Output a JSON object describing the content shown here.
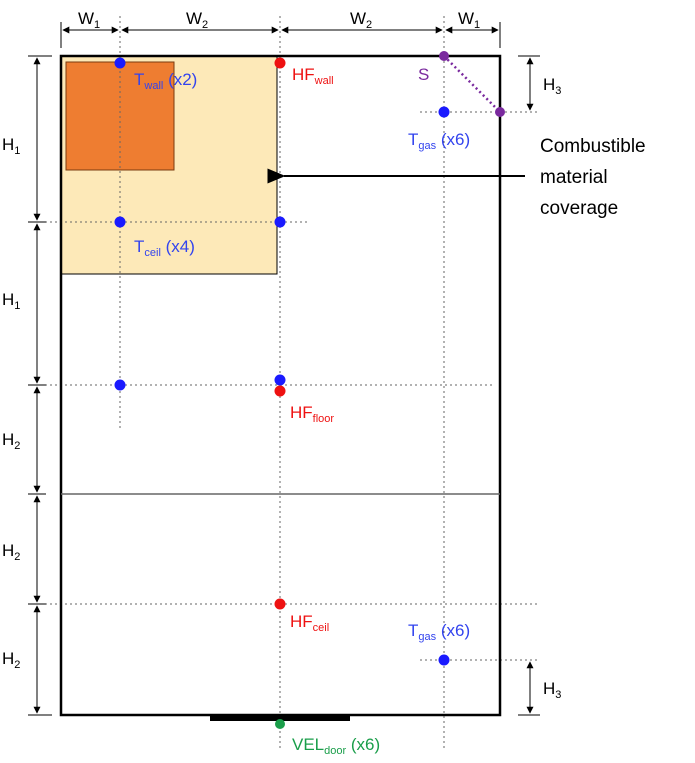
{
  "colors": {
    "blue_sensor": "#1a1aff",
    "red_sensor": "#ee1111",
    "purple_sensor": "#7a2a9e",
    "green_sensor": "#1a9e4a",
    "coverage_fill": "#fde9b8",
    "wall_panel_fill": "#ee7d31",
    "label_blue": "#3344ee",
    "label_red": "#ee1111",
    "label_green": "#1a9e4a",
    "label_purple": "#7a2a9e"
  },
  "dimensions": {
    "w1": {
      "base": "W",
      "sub": "1"
    },
    "w2": {
      "base": "W",
      "sub": "2"
    },
    "h1": {
      "base": "H",
      "sub": "1"
    },
    "h2": {
      "base": "H",
      "sub": "2"
    },
    "h3": {
      "base": "H",
      "sub": "3"
    }
  },
  "labels": {
    "t_wall": {
      "base": "T",
      "sub": "wall",
      "suffix": " (x2)"
    },
    "hf_wall": {
      "base": "HF",
      "sub": "wall"
    },
    "s": {
      "text": "S"
    },
    "t_gas_top": {
      "base": "T",
      "sub": "gas",
      "suffix": " (x6)"
    },
    "t_ceil": {
      "base": "T",
      "sub": "ceil",
      "suffix": " (x4)"
    },
    "hf_floor": {
      "base": "HF",
      "sub": "floor"
    },
    "hf_ceil": {
      "base": "HF",
      "sub": "ceil"
    },
    "t_gas_bottom": {
      "base": "T",
      "sub": "gas",
      "suffix": " (x6)"
    },
    "vel_door": {
      "base": "VEL",
      "sub": "door",
      "suffix": " (x6)"
    }
  },
  "annotation": {
    "line1": "Combustible",
    "line2": "material",
    "line3": "coverage"
  }
}
